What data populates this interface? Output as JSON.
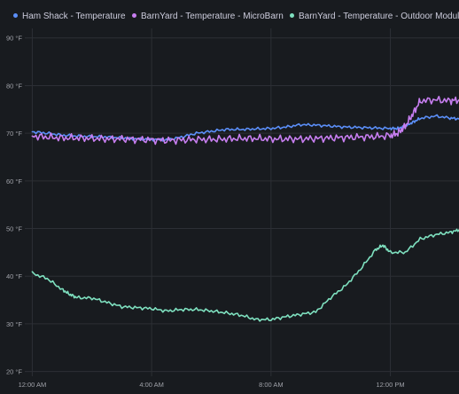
{
  "legend": [
    {
      "label": "Ham Shack - Temperature",
      "color": "#5b8ff9"
    },
    {
      "label": "BarnYard - Temperature - MicroBarn",
      "color": "#c77ef0"
    },
    {
      "label": "BarnYard - Temperature - Outdoor Module",
      "color": "#7ee0bf"
    }
  ],
  "chart_data": {
    "type": "line",
    "x_unit": "hours",
    "x_range": [
      -0.25,
      14.3
    ],
    "x_ticks": [
      {
        "value": 0,
        "label": "12:00 AM"
      },
      {
        "value": 4,
        "label": "4:00 AM"
      },
      {
        "value": 8,
        "label": "8:00 AM"
      },
      {
        "value": 12,
        "label": "12:00 PM"
      }
    ],
    "ylim": [
      19,
      92
    ],
    "y_ticks": [
      {
        "value": 20,
        "label": "20 °F"
      },
      {
        "value": 30,
        "label": "30 °F"
      },
      {
        "value": 40,
        "label": "40 °F"
      },
      {
        "value": 50,
        "label": "50 °F"
      },
      {
        "value": 60,
        "label": "60 °F"
      },
      {
        "value": 70,
        "label": "70 °F"
      },
      {
        "value": 80,
        "label": "80 °F"
      },
      {
        "value": 90,
        "label": "90 °F"
      }
    ],
    "grid": true,
    "legend_position": "top",
    "series": [
      {
        "name": "Ham Shack - Temperature",
        "color": "#5b8ff9",
        "x": [
          0,
          0.5,
          1,
          1.5,
          2,
          2.5,
          3,
          3.5,
          4,
          4.5,
          5,
          5.5,
          6,
          6.5,
          7,
          7.5,
          8,
          8.5,
          9,
          9.5,
          10,
          10.5,
          11,
          11.5,
          12,
          12.25,
          12.5,
          12.75,
          13,
          13.5,
          14,
          14.3
        ],
        "y": [
          70.3,
          70,
          69.6,
          69.4,
          69.3,
          69.2,
          69,
          68.8,
          68.7,
          68.6,
          69.2,
          70,
          70.4,
          70.8,
          70.8,
          70.9,
          71,
          71.3,
          71.8,
          71.7,
          71.5,
          71.3,
          71.2,
          71.1,
          71,
          71,
          71.5,
          72.3,
          73.1,
          73.6,
          73.2,
          73
        ]
      },
      {
        "name": "BarnYard - Temperature - MicroBarn",
        "color": "#c77ef0",
        "x": [
          0,
          0.5,
          1,
          1.5,
          2,
          2.5,
          3,
          3.5,
          4,
          4.5,
          5,
          5.5,
          6,
          6.5,
          7,
          7.5,
          8,
          8.5,
          9,
          9.5,
          10,
          10.5,
          11,
          11.5,
          12,
          12.25,
          12.5,
          12.75,
          13,
          13.5,
          14,
          14.3
        ],
        "y": [
          69.4,
          69.2,
          69,
          69,
          68.9,
          68.8,
          68.8,
          68.7,
          68.6,
          68.5,
          68.6,
          68.7,
          68.7,
          68.8,
          68.9,
          68.9,
          68.8,
          68.8,
          68.8,
          68.9,
          69,
          69.1,
          69.2,
          69.3,
          69.5,
          70,
          71.5,
          74,
          76.8,
          77,
          76.8,
          77
        ]
      },
      {
        "name": "BarnYard - Temperature - Outdoor Module",
        "color": "#7ee0bf",
        "x": [
          0,
          0.5,
          1,
          1.25,
          1.5,
          2,
          2.5,
          3,
          3.5,
          4,
          4.5,
          5,
          5.5,
          6,
          6.5,
          7,
          7.5,
          8,
          8.5,
          9,
          9.5,
          10,
          10.5,
          11,
          11.5,
          11.75,
          12,
          12.5,
          13,
          13.5,
          14,
          14.3
        ],
        "y": [
          40.6,
          39.5,
          37.2,
          36.2,
          35.5,
          35.4,
          34.5,
          33.6,
          33.4,
          33.2,
          32.7,
          33,
          33,
          32.7,
          32.3,
          31.8,
          30.9,
          30.9,
          31.5,
          32,
          32.5,
          35.5,
          38,
          41.5,
          45.5,
          46.5,
          45,
          45,
          47.8,
          48.7,
          49.2,
          49.7
        ]
      }
    ]
  }
}
